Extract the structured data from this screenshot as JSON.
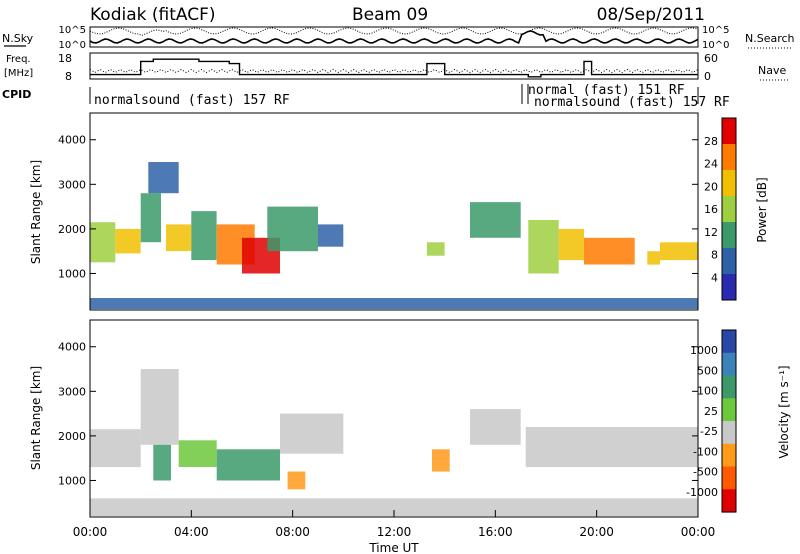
{
  "header": {
    "station": "Kodiak (fitACF)",
    "beam": "Beam 09",
    "date": "08/Sep/2011"
  },
  "chart_data": [
    {
      "type": "line",
      "panel": "noise",
      "left_label": "N.Sky",
      "right_label": "N.Search",
      "left_ticks": [
        "10^5",
        "10^0"
      ],
      "right_ticks": [
        "10^5",
        "10^0"
      ]
    },
    {
      "type": "line",
      "panel": "frequency",
      "left_label_1": "Freq.",
      "left_label_2": "[MHz]",
      "right_label": "Nave",
      "left_ticks": [
        "18",
        "8"
      ],
      "right_ticks": [
        "60",
        "0"
      ],
      "freq_steps": [
        {
          "x0": 0,
          "x1": 2.0,
          "y": 10
        },
        {
          "x0": 2.0,
          "x1": 2.5,
          "y": 16
        },
        {
          "x0": 2.5,
          "x1": 4.3,
          "y": 17
        },
        {
          "x0": 4.3,
          "x1": 5.5,
          "y": 16
        },
        {
          "x0": 5.5,
          "x1": 5.9,
          "y": 15
        },
        {
          "x0": 5.9,
          "x1": 13.3,
          "y": 10
        },
        {
          "x0": 13.3,
          "x1": 14.0,
          "y": 15
        },
        {
          "x0": 14.0,
          "x1": 17.3,
          "y": 10
        },
        {
          "x0": 17.3,
          "x1": 17.8,
          "y": 9
        },
        {
          "x0": 17.8,
          "x1": 19.5,
          "y": 10
        },
        {
          "x0": 19.5,
          "x1": 19.8,
          "y": 16
        },
        {
          "x0": 19.8,
          "x1": 24,
          "y": 10
        }
      ]
    },
    {
      "type": "table",
      "panel": "cpid",
      "label": "CPID",
      "segments": [
        {
          "text": "normalsound (fast) 157 RF",
          "start": 0
        },
        {
          "text": "normal (fast) 151 RF",
          "start": 17.3
        },
        {
          "text": "normalsound (fast) 157 RF",
          "start": 17.9
        }
      ]
    },
    {
      "type": "heatmap",
      "panel": "power",
      "ylabel": "Slant Range [km]",
      "y_ticks": [
        "4000",
        "3000",
        "2000",
        "1000"
      ],
      "y_tick_values": [
        4000,
        3000,
        2000,
        1000
      ],
      "ylim": [
        180,
        4600
      ],
      "colorbar_label": "Power [dB]",
      "colorbar_ticks": [
        "28",
        "24",
        "20",
        "16",
        "12",
        "8",
        "4"
      ],
      "colorbar_colors": [
        "#e00000",
        "#ff7a00",
        "#f0c000",
        "#9ecf3f",
        "#3c9a6a",
        "#2e62a8",
        "#2a2ab0"
      ],
      "echo_regions": [
        {
          "t0": 0.0,
          "t1": 1.0,
          "r0": 1250,
          "r1": 2150,
          "level": 3
        },
        {
          "t0": 1.0,
          "t1": 2.0,
          "r0": 1450,
          "r1": 2000,
          "level": 2
        },
        {
          "t0": 2.0,
          "t1": 2.8,
          "r0": 1700,
          "r1": 2800,
          "level": 4
        },
        {
          "t0": 2.3,
          "t1": 3.5,
          "r0": 2800,
          "r1": 3500,
          "level": 5
        },
        {
          "t0": 3.0,
          "t1": 4.0,
          "r0": 1500,
          "r1": 2100,
          "level": 2
        },
        {
          "t0": 4.0,
          "t1": 5.0,
          "r0": 1300,
          "r1": 2400,
          "level": 4
        },
        {
          "t0": 5.0,
          "t1": 6.5,
          "r0": 1200,
          "r1": 2100,
          "level": 1
        },
        {
          "t0": 6.0,
          "t1": 7.5,
          "r0": 1000,
          "r1": 1800,
          "level": 0
        },
        {
          "t0": 7.0,
          "t1": 9.0,
          "r0": 1500,
          "r1": 2500,
          "level": 4
        },
        {
          "t0": 9.0,
          "t1": 10.0,
          "r0": 1600,
          "r1": 2100,
          "level": 5
        },
        {
          "t0": 13.3,
          "t1": 14.0,
          "r0": 1400,
          "r1": 1700,
          "level": 3
        },
        {
          "t0": 15.0,
          "t1": 17.0,
          "r0": 1800,
          "r1": 2600,
          "level": 4
        },
        {
          "t0": 17.3,
          "t1": 18.5,
          "r0": 1000,
          "r1": 2200,
          "level": 3
        },
        {
          "t0": 18.5,
          "t1": 19.5,
          "r0": 1300,
          "r1": 2000,
          "level": 2
        },
        {
          "t0": 19.5,
          "t1": 21.5,
          "r0": 1200,
          "r1": 1800,
          "level": 1
        },
        {
          "t0": 22.0,
          "t1": 22.5,
          "r0": 1200,
          "r1": 1500,
          "level": 2
        },
        {
          "t0": 22.5,
          "t1": 24.0,
          "r0": 1300,
          "r1": 1700,
          "level": 2
        },
        {
          "t0": 0.0,
          "t1": 24.0,
          "r0": 200,
          "r1": 450,
          "level": 5
        }
      ]
    },
    {
      "type": "heatmap",
      "panel": "velocity",
      "ylabel": "Slant Range [km]",
      "xlabel": "Time UT",
      "y_ticks": [
        "4000",
        "3000",
        "2000",
        "1000"
      ],
      "y_tick_values": [
        4000,
        3000,
        2000,
        1000
      ],
      "ylim": [
        180,
        4600
      ],
      "x_ticks": [
        "00:00",
        "04:00",
        "08:00",
        "12:00",
        "16:00",
        "20:00",
        "00:00"
      ],
      "xlim": [
        0,
        24
      ],
      "colorbar_label": "Velocity [m s⁻¹]",
      "colorbar_ticks": [
        "1000",
        "500",
        "100",
        "25",
        "-25",
        "-100",
        "-500",
        "-1000"
      ],
      "colorbar_colors": [
        "#2848a8",
        "#3a82b8",
        "#3c9a6a",
        "#6cc83c",
        "#c8c8c8",
        "#ff9a1a",
        "#ff5a00",
        "#e00000"
      ],
      "echo_regions": [
        {
          "t0": 0.0,
          "t1": 2.0,
          "r0": 1300,
          "r1": 2150,
          "level": 4
        },
        {
          "t0": 2.0,
          "t1": 3.5,
          "r0": 1800,
          "r1": 3500,
          "level": 4
        },
        {
          "t0": 2.5,
          "t1": 3.2,
          "r0": 1000,
          "r1": 1800,
          "level": 2
        },
        {
          "t0": 3.5,
          "t1": 5.0,
          "r0": 1300,
          "r1": 1900,
          "level": 3
        },
        {
          "t0": 5.0,
          "t1": 7.5,
          "r0": 1000,
          "r1": 1700,
          "level": 2
        },
        {
          "t0": 7.5,
          "t1": 10.0,
          "r0": 1600,
          "r1": 2500,
          "level": 4
        },
        {
          "t0": 7.8,
          "t1": 8.5,
          "r0": 800,
          "r1": 1200,
          "level": 5
        },
        {
          "t0": 13.5,
          "t1": 14.2,
          "r0": 1200,
          "r1": 1700,
          "level": 5
        },
        {
          "t0": 15.0,
          "t1": 17.0,
          "r0": 1800,
          "r1": 2600,
          "level": 4
        },
        {
          "t0": 17.2,
          "t1": 24.0,
          "r0": 1300,
          "r1": 2200,
          "level": 4
        },
        {
          "t0": 0.0,
          "t1": 24.0,
          "r0": 200,
          "r1": 600,
          "level": 4
        }
      ]
    }
  ]
}
